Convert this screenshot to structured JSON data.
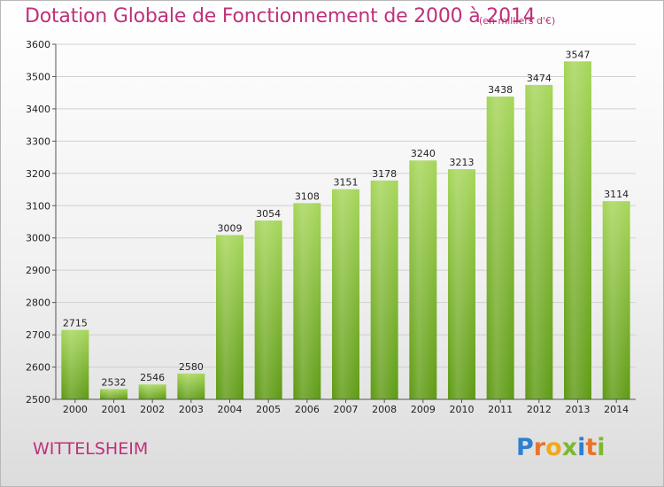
{
  "title": "Dotation Globale de Fonctionnement de 2000 à 2014",
  "unit_label": "(en milliers d'€)",
  "commune": "WITTELSHEIM",
  "logo": {
    "text": "Proxiti"
  },
  "colors": {
    "title": "#c0307a",
    "bar_top": "#a6d65a",
    "bar_bottom": "#5e9a14",
    "grid": "#cccccc"
  },
  "chart_data": {
    "type": "bar",
    "categories": [
      "2000",
      "2001",
      "2002",
      "2003",
      "2004",
      "2005",
      "2006",
      "2007",
      "2008",
      "2009",
      "2010",
      "2011",
      "2012",
      "2013",
      "2014"
    ],
    "values": [
      2715,
      2532,
      2546,
      2580,
      3009,
      3054,
      3108,
      3151,
      3178,
      3240,
      3213,
      3438,
      3474,
      3547,
      3114
    ],
    "title": "Dotation Globale de Fonctionnement de 2000 à 2014",
    "subtitle": "(en milliers d'€)",
    "xlabel": "",
    "ylabel": "",
    "ylim": [
      2500,
      3600
    ],
    "yticks": [
      2500,
      2600,
      2700,
      2800,
      2900,
      3000,
      3100,
      3200,
      3300,
      3400,
      3500,
      3600
    ],
    "grid": true,
    "legend": "none"
  }
}
